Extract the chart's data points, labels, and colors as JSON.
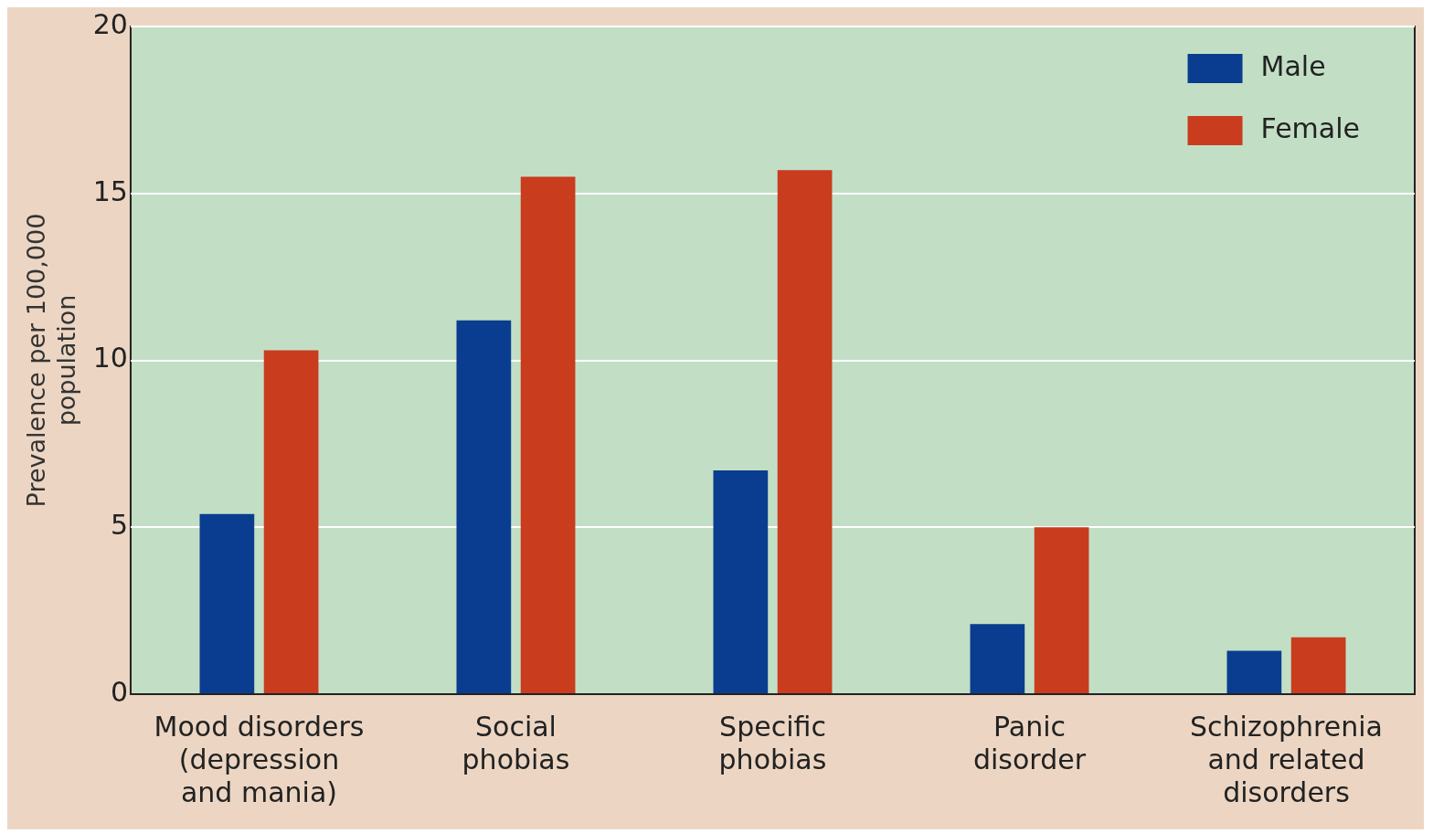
{
  "chart_data": {
    "type": "bar",
    "ylabel": "Prevalence per 100,000\npopulation",
    "categories": [
      "Mood disorders\n(depression\nand mania)",
      "Social\nphobias",
      "Specific\nphobias",
      "Panic\ndisorder",
      "Schizophrenia\nand related\ndisorders"
    ],
    "series": [
      {
        "name": "Male",
        "color": "#0a3d8f",
        "values": [
          5.4,
          11.2,
          6.7,
          2.1,
          1.3
        ]
      },
      {
        "name": "Female",
        "color": "#c93c1e",
        "values": [
          10.3,
          15.5,
          15.7,
          5.0,
          1.7
        ]
      }
    ],
    "ylim": [
      0,
      20
    ],
    "yticks": [
      0,
      5,
      10,
      15,
      20
    ],
    "grid": "y",
    "legend": "top right"
  }
}
